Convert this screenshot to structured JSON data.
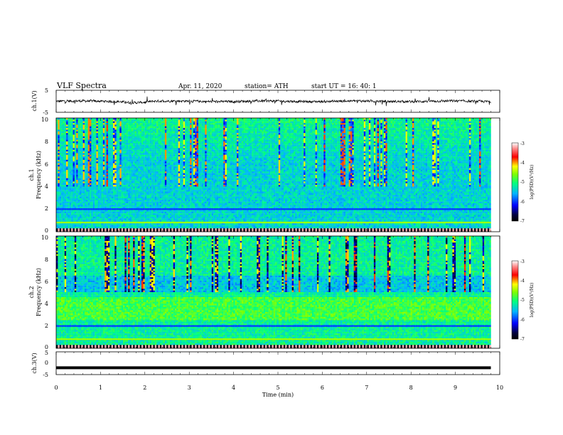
{
  "header": {
    "title": "VLF  Spectra",
    "date": "Apr. 11, 2020",
    "station": "station= ATH",
    "start": "start  UT  =    16: 40: 1"
  },
  "chart_data": [
    {
      "type": "line",
      "name": "ch1-waveform",
      "ylabel": "ch.1(V)",
      "ylim": [
        -5,
        5
      ],
      "yticks": [
        "5",
        "-5"
      ],
      "baseline": 0,
      "xlim": [
        0,
        10
      ]
    },
    {
      "type": "heatmap",
      "name": "ch1-spectrogram",
      "ylabel_line1": "ch.1",
      "ylabel_line2": "Frequency  (kHz)",
      "ylim": [
        0,
        10
      ],
      "yticks": [
        "10",
        "8",
        "6",
        "4",
        "2",
        "0"
      ],
      "xlim": [
        0,
        9.8
      ]
    },
    {
      "type": "heatmap",
      "name": "ch2-spectrogram",
      "ylabel_line1": "ch.2",
      "ylabel_line2": "Frequency  (kHz)",
      "ylim": [
        0,
        10
      ],
      "yticks": [
        "10",
        "8",
        "6",
        "4",
        "2",
        "0"
      ],
      "xlim": [
        0,
        9.8
      ]
    },
    {
      "type": "line",
      "name": "ch3-waveform",
      "ylabel": "ch.3(V)",
      "ylim": [
        -5,
        5
      ],
      "yticks": [
        "5",
        "0",
        "-5"
      ],
      "baseline": -2,
      "xlim": [
        0,
        10
      ]
    }
  ],
  "xaxis": {
    "label": "Time  (min)",
    "range": [
      0,
      10
    ],
    "ticks": [
      "0",
      "1",
      "2",
      "3",
      "4",
      "5",
      "6",
      "7",
      "8",
      "9",
      "10"
    ]
  },
  "colorbar": {
    "label": "log(PSD)(V²/Hz)",
    "range": [
      -7,
      -3
    ],
    "ticks": [
      "-3",
      "-4",
      "-5",
      "-6",
      "-7"
    ],
    "colors": [
      "#000000",
      "#0000ff",
      "#00b4ff",
      "#00ff80",
      "#ffff00",
      "#ff0000",
      "#ffffff"
    ]
  }
}
